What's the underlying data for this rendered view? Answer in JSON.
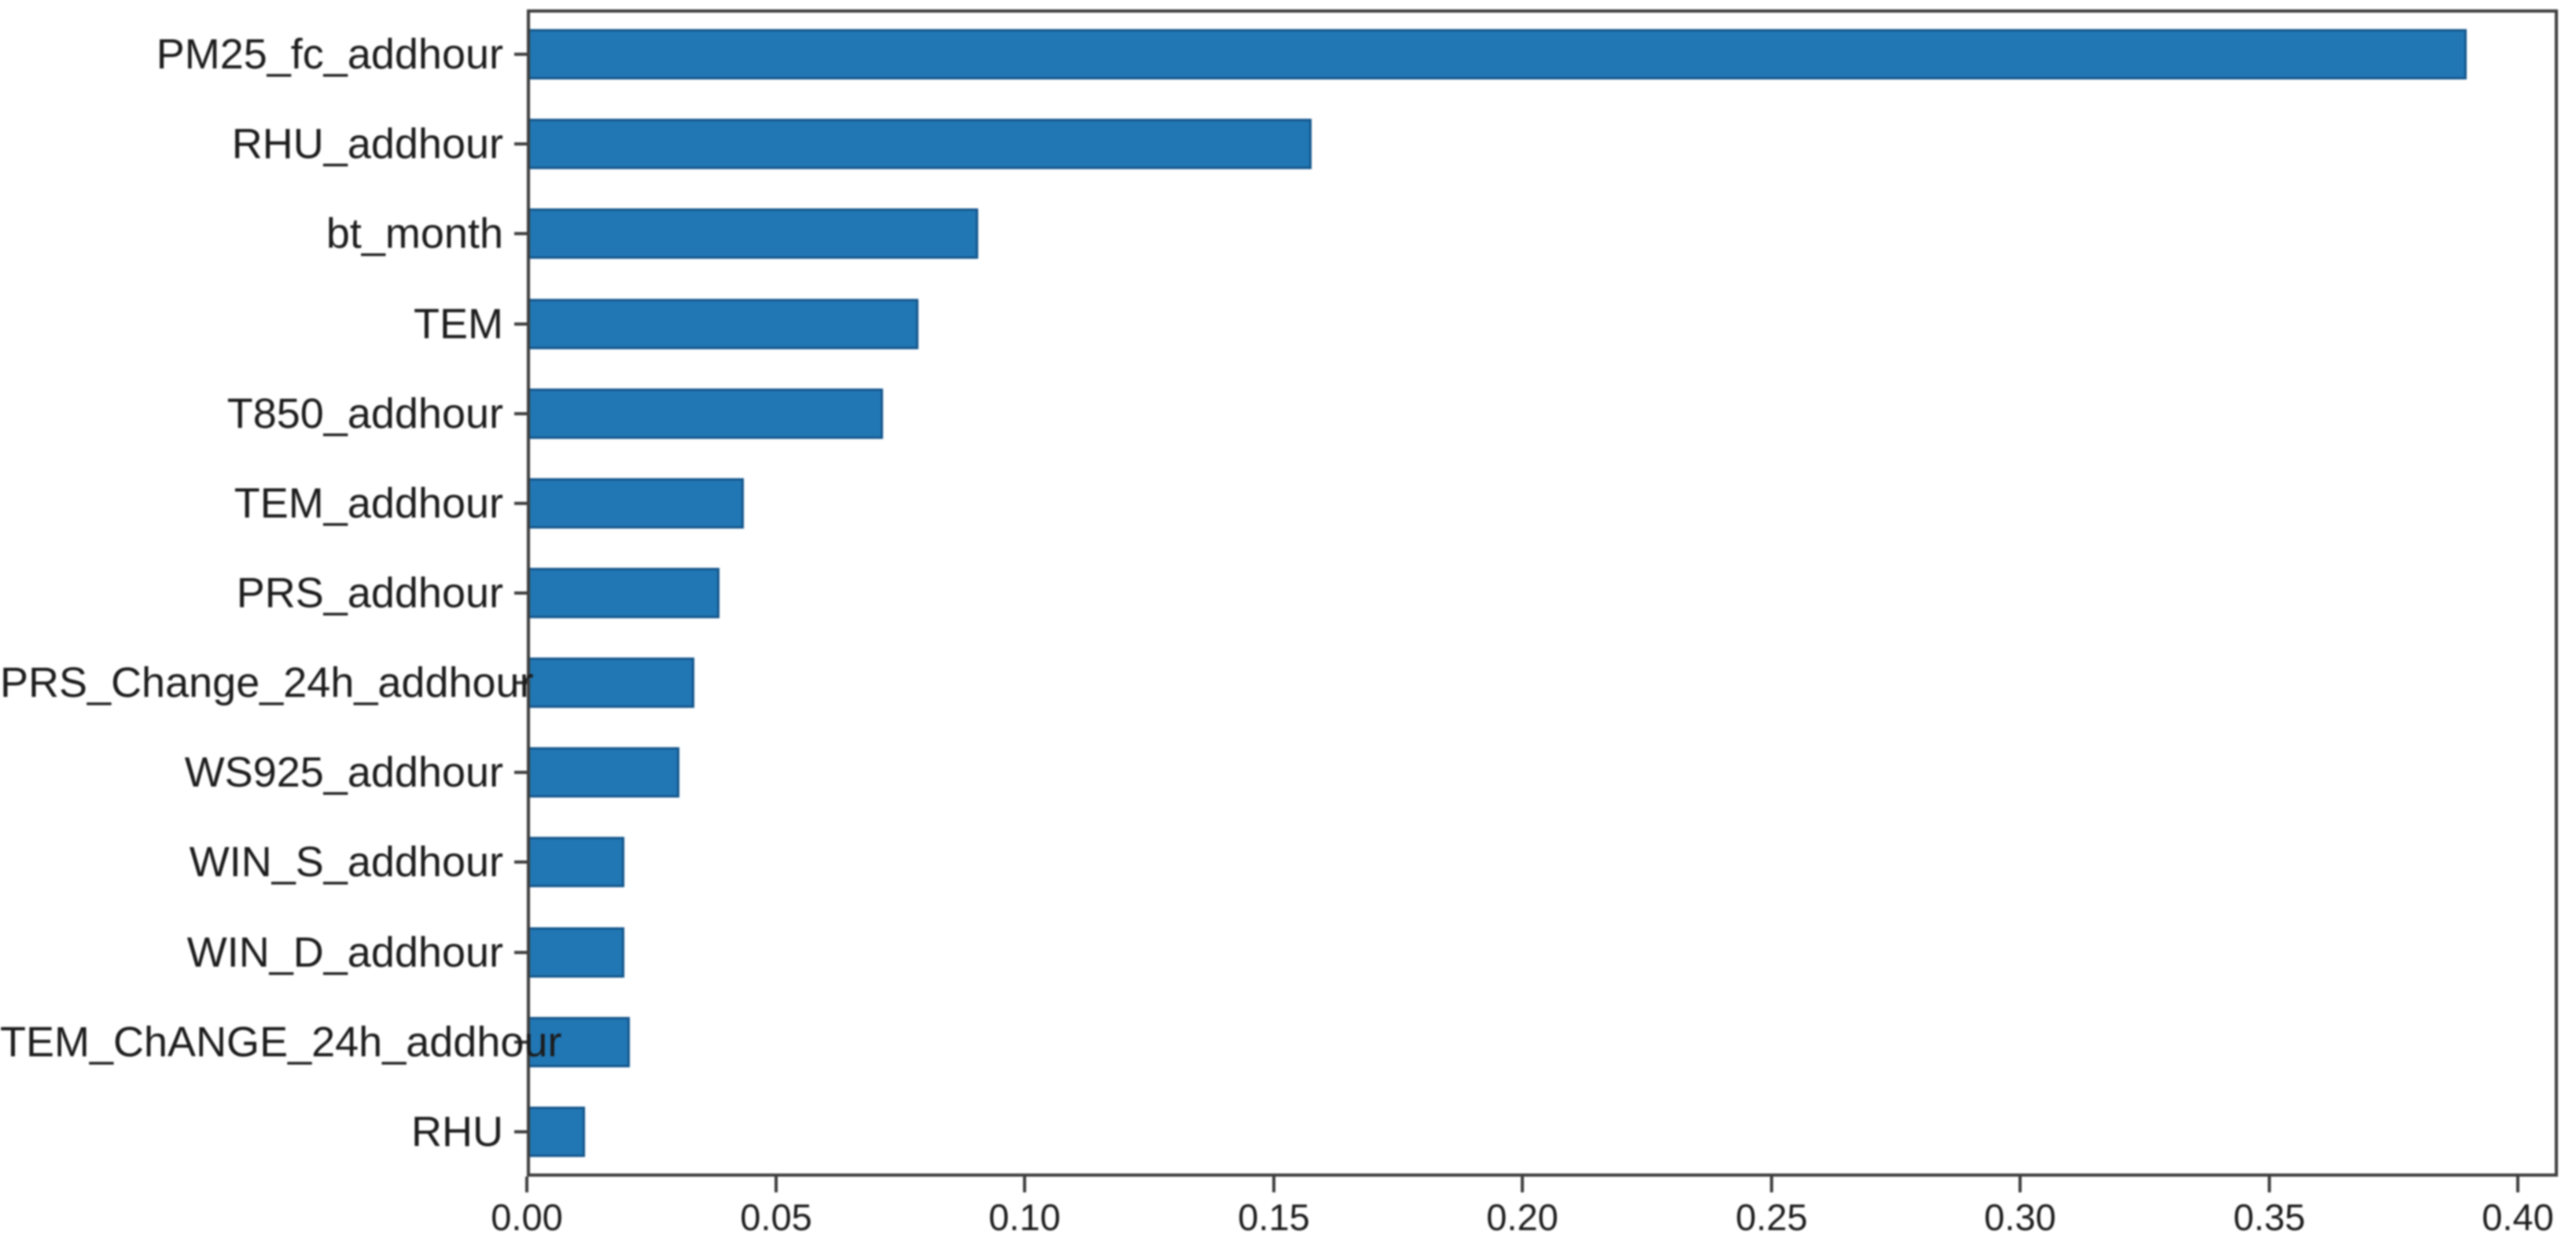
{
  "chart_data": {
    "type": "bar",
    "orientation": "horizontal",
    "title": "",
    "xlabel": "",
    "ylabel": "",
    "categories": [
      "PM25_fc_addhour",
      "RHU_addhour",
      "bt_month",
      "TEM",
      "T850_addhour",
      "TEM_addhour",
      "PRS_addhour",
      "PRS_Change_24h_addhour",
      "WS925_addhour",
      "WIN_S_addhour",
      "WIN_D_addhour",
      "TEM_ChANGE_24h_addhour",
      "RHU"
    ],
    "values": [
      0.389,
      0.157,
      0.09,
      0.078,
      0.071,
      0.043,
      0.038,
      0.033,
      0.03,
      0.019,
      0.019,
      0.02,
      0.011
    ],
    "xlim": [
      0,
      0.408
    ],
    "xticks": [
      "0.00",
      "0.05",
      "0.10",
      "0.15",
      "0.20",
      "0.25",
      "0.30",
      "0.35",
      "0.40"
    ],
    "grid": false,
    "legend_position": "none",
    "bar_relative_height": 0.5,
    "colors": {
      "bar": "#2177b4",
      "bar_edge": "#14568c",
      "spine": "#3d3d3d",
      "tick": "#3d3d3d",
      "text": "#1c1c1c"
    }
  }
}
